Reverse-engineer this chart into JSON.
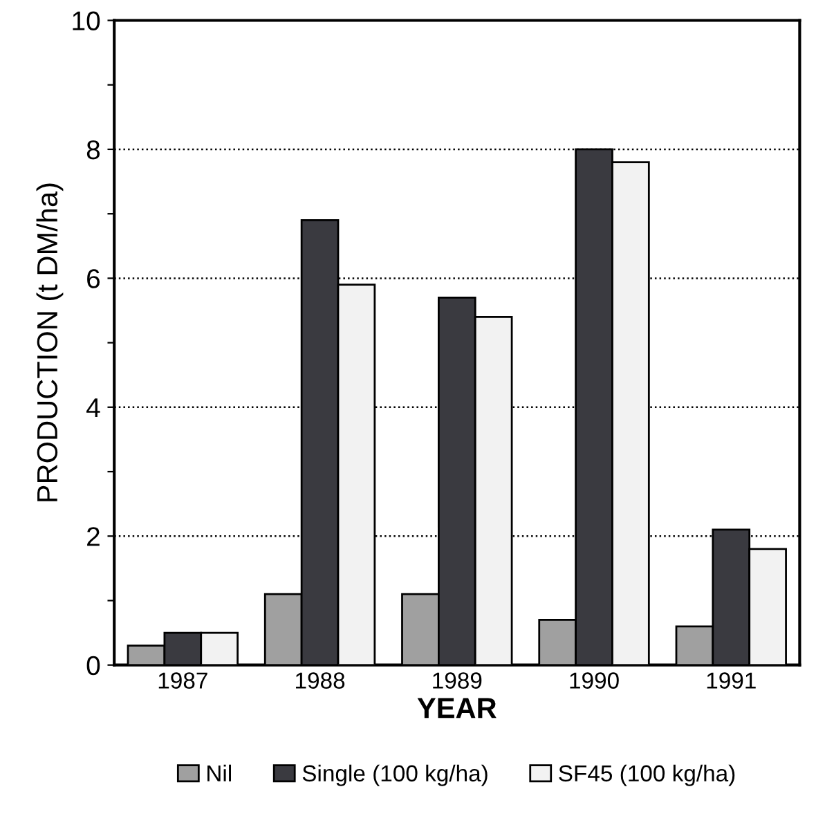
{
  "chart_data": {
    "type": "bar",
    "xlabel": "YEAR",
    "ylabel": "PRODUCTION (t DM/ha)",
    "categories": [
      "1987",
      "1988",
      "1989",
      "1990",
      "1991"
    ],
    "series": [
      {
        "name": "Nil",
        "color": "#a0a0a0",
        "values": [
          0.3,
          1.1,
          1.1,
          0.7,
          0.6
        ]
      },
      {
        "name": "Single (100 kg/ha)",
        "color": "#3a3a40",
        "values": [
          0.5,
          6.9,
          5.7,
          8.0,
          2.1
        ]
      },
      {
        "name": "SF45 (100 kg/ha)",
        "color": "#f2f2f2",
        "values": [
          0.5,
          5.9,
          5.4,
          7.8,
          1.8
        ]
      }
    ],
    "ylim": [
      0,
      10
    ],
    "yticks": [
      0,
      {
        "value": 1,
        "label": null
      },
      2,
      {
        "value": 3,
        "label": null
      },
      4,
      {
        "value": 5,
        "label": null
      },
      6,
      {
        "value": 7,
        "label": null
      },
      8,
      {
        "value": 9,
        "label": null
      },
      10
    ],
    "grid": "y",
    "legend": "bottom"
  }
}
